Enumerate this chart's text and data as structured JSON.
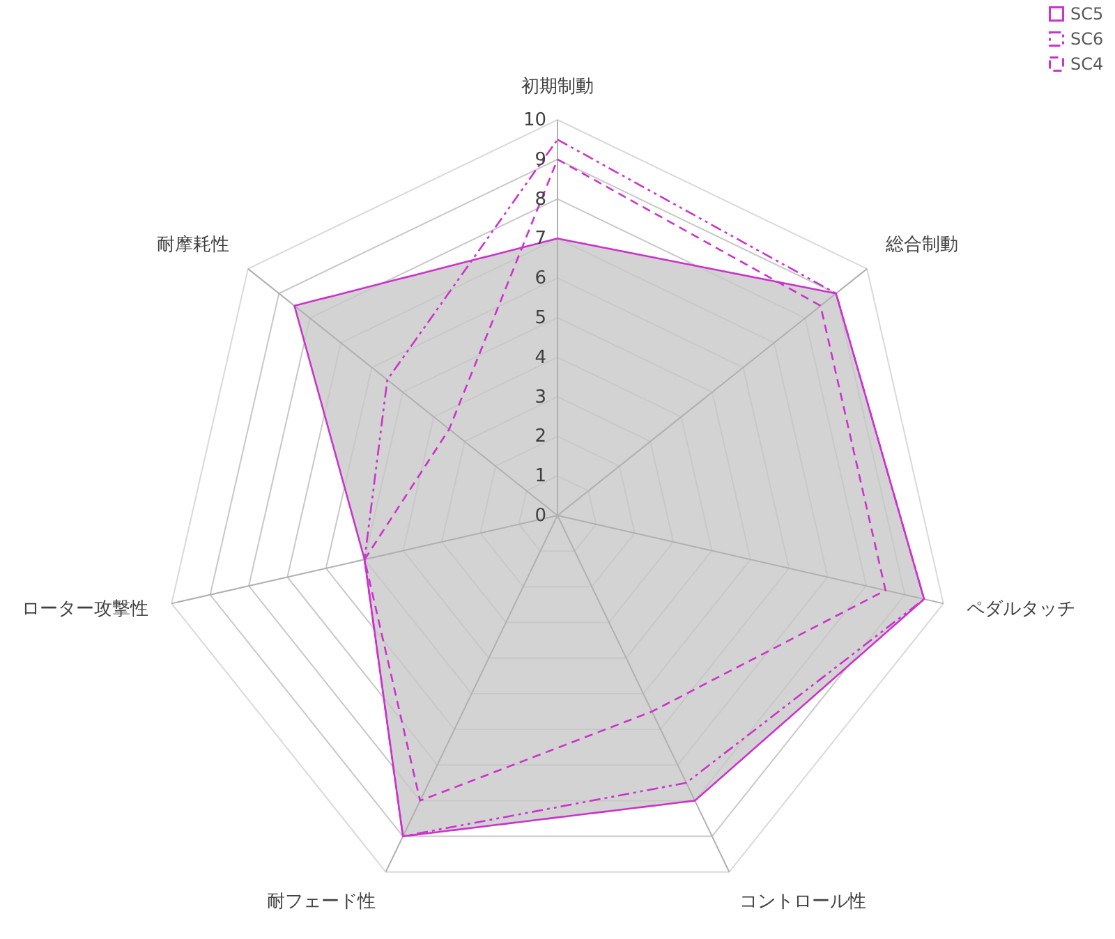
{
  "chart_data": {
    "type": "radar",
    "categories": [
      "初期制動",
      "総合制動",
      "ペダルタッチ",
      "コントロール性",
      "耐フェード性",
      "ローター攻撃性",
      "耐摩耗性"
    ],
    "ylim": [
      0,
      10
    ],
    "yticks": [
      0,
      1,
      2,
      3,
      4,
      5,
      6,
      7,
      8,
      9,
      10
    ],
    "grid": true,
    "legend": "top right",
    "series": [
      {
        "name": "SC5",
        "color": "#cc33cc",
        "line_style": "solid",
        "values": [
          7,
          9,
          9.5,
          8,
          9,
          5,
          8.5
        ]
      },
      {
        "name": "SC6",
        "color": "#cc33cc",
        "line_style": "dotted",
        "values": [
          9.5,
          9,
          9.5,
          7.5,
          9,
          5,
          5.5
        ]
      },
      {
        "name": "SC4",
        "color": "#cc33cc",
        "line_style": "dashed",
        "values": [
          9,
          8.5,
          8.5,
          5.5,
          8,
          5,
          3.5
        ]
      }
    ]
  }
}
